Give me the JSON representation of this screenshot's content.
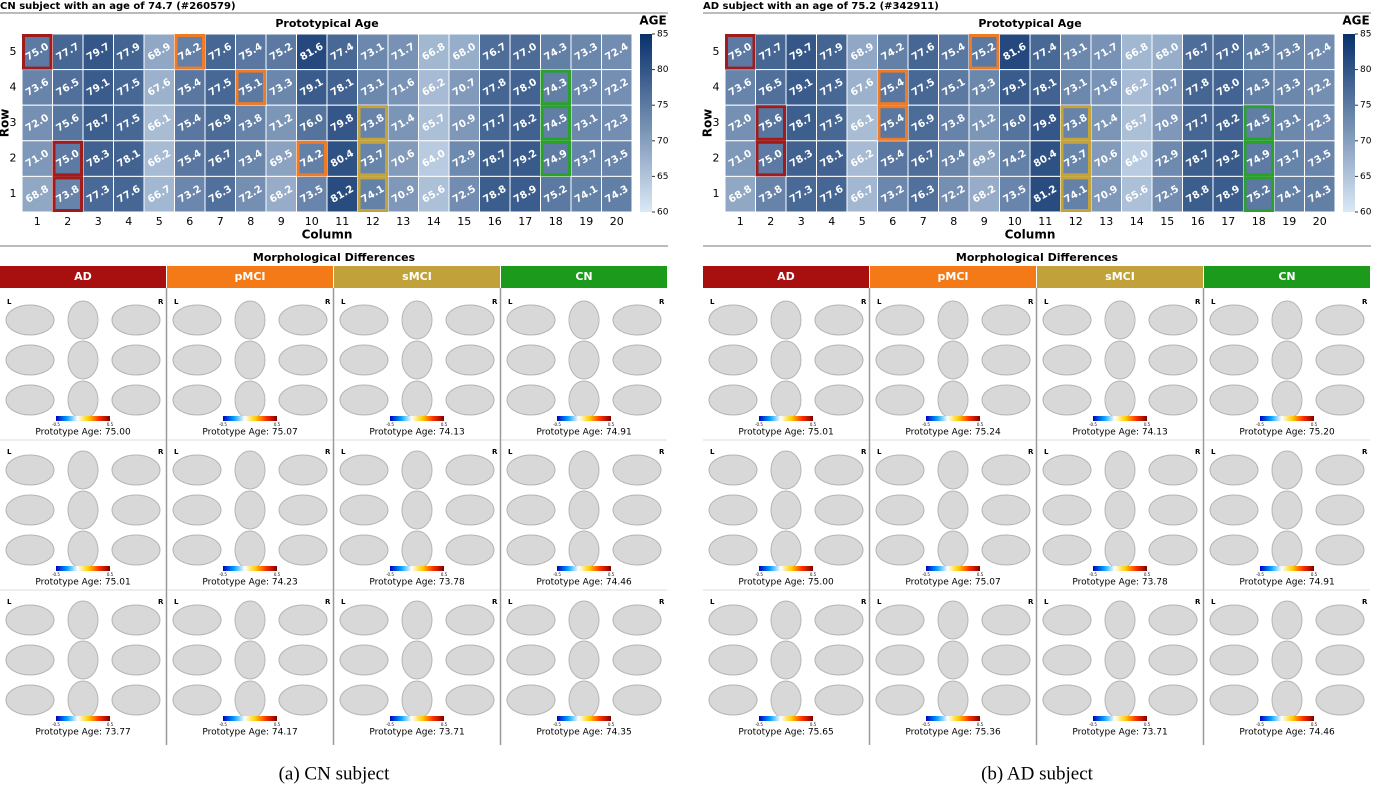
{
  "chart_data": [
    {
      "type": "heatmap",
      "subtitle": "CN subject with an age of 74.7 (#260579)",
      "title": "Prototypical Age",
      "xlabel": "Column",
      "ylabel": "Row",
      "x": [
        1,
        2,
        3,
        4,
        5,
        6,
        7,
        8,
        9,
        10,
        11,
        12,
        13,
        14,
        15,
        16,
        17,
        18,
        19,
        20
      ],
      "y": [
        5,
        4,
        3,
        2,
        1
      ],
      "values": [
        [
          75.0,
          77.7,
          79.7,
          77.9,
          68.9,
          74.2,
          77.6,
          75.4,
          75.2,
          81.6,
          77.4,
          73.1,
          71.7,
          66.8,
          68.0,
          76.7,
          77.0,
          74.3,
          73.3,
          72.4
        ],
        [
          73.6,
          76.5,
          79.1,
          77.5,
          67.6,
          75.4,
          77.5,
          75.1,
          73.3,
          79.1,
          78.1,
          73.1,
          71.6,
          66.2,
          70.7,
          77.8,
          78.0,
          74.3,
          73.3,
          72.2
        ],
        [
          72.0,
          75.6,
          78.7,
          77.5,
          66.1,
          75.4,
          76.9,
          73.8,
          71.2,
          76.0,
          79.8,
          73.8,
          71.4,
          65.7,
          70.9,
          77.7,
          78.2,
          74.5,
          73.1,
          72.3
        ],
        [
          71.0,
          75.0,
          78.3,
          78.1,
          66.2,
          75.4,
          76.7,
          73.4,
          69.5,
          74.2,
          80.4,
          73.7,
          70.6,
          64.0,
          72.9,
          78.7,
          79.2,
          74.9,
          73.7,
          73.5
        ],
        [
          68.8,
          73.8,
          77.3,
          77.6,
          66.7,
          73.2,
          76.3,
          72.2,
          68.2,
          73.5,
          81.2,
          74.1,
          70.9,
          65.6,
          72.5,
          78.8,
          78.9,
          75.2,
          74.1,
          74.3
        ]
      ],
      "value_labels": [
        [
          "75.0",
          "77.7",
          "79.7",
          "77.9",
          "68.9",
          "74.2",
          "77.6",
          "75.4",
          "75.2",
          "81.6",
          "77.4",
          "73.1",
          "71.7",
          "66.8",
          "68.0",
          "76.7",
          "77.0",
          "74.3",
          "73.3",
          "72.4"
        ],
        [
          "73.6",
          "76.5",
          "79.1",
          "77.5",
          "67.6",
          "75.4",
          "77.5",
          "75.1",
          "73.3",
          "79.1",
          "78.1",
          "73.1",
          "71.6",
          "66.2",
          "70.7",
          "77.8",
          "78.0",
          "74.3",
          "73.3",
          "72.2"
        ],
        [
          "72.0",
          "75.6",
          "78.7",
          "77.5",
          "66.1",
          "75.4",
          "76.9",
          "73.8",
          "71.2",
          "76.0",
          "79.8",
          "73.8",
          "71.4",
          "65.7",
          "70.9",
          "77.7",
          "78.2",
          "74.5",
          "73.1",
          "72.3"
        ],
        [
          "71.0",
          "75.0",
          "78.3",
          "78.1",
          "66.2",
          "75.4",
          "76.7",
          "73.4",
          "69.5",
          "74.2",
          "80.4",
          "73.7",
          "70.6",
          "64.0",
          "72.9",
          "78.7",
          "79.2",
          "74.9",
          "73.7",
          "73.5"
        ],
        [
          "68.8",
          "73.8",
          "77.3",
          "77.6",
          "66.7",
          "73.2",
          "76.3",
          "72.2",
          "68.2",
          "73.5",
          "81.2",
          "74.1",
          "70.9",
          "65.6",
          "72.5",
          "78.8",
          "78.9",
          "75.2",
          "74.1",
          "74.3"
        ]
      ],
      "colorbar_label": "AGE",
      "zlim": [
        60,
        85
      ],
      "zticks": [
        60,
        65,
        70,
        75,
        80,
        85
      ],
      "colormap": [
        "#dbe9f6",
        "#08306b"
      ],
      "highlights": [
        {
          "color": "#a01c1c",
          "cells": [
            [
              5,
              1
            ],
            [
              2,
              2
            ],
            [
              1,
              2
            ]
          ]
        },
        {
          "color": "#f07b26",
          "cells": [
            [
              5,
              6
            ],
            [
              4,
              8
            ],
            [
              2,
              10
            ]
          ]
        },
        {
          "color": "#c4a43a",
          "cells": [
            [
              3,
              12
            ],
            [
              2,
              12
            ],
            [
              1,
              12
            ]
          ]
        },
        {
          "color": "#2ca02c",
          "cells": [
            [
              4,
              18
            ],
            [
              3,
              18
            ],
            [
              2,
              18
            ]
          ]
        }
      ]
    },
    {
      "type": "heatmap",
      "subtitle": "AD subject with an age of 75.2 (#342911)",
      "title": "Prototypical Age",
      "xlabel": "Column",
      "ylabel": "Row",
      "x": [
        1,
        2,
        3,
        4,
        5,
        6,
        7,
        8,
        9,
        10,
        11,
        12,
        13,
        14,
        15,
        16,
        17,
        18,
        19,
        20
      ],
      "y": [
        5,
        4,
        3,
        2,
        1
      ],
      "values": [
        [
          75.0,
          77.7,
          79.7,
          77.9,
          68.9,
          74.2,
          77.6,
          75.4,
          75.2,
          81.6,
          77.4,
          73.1,
          71.7,
          66.8,
          68.0,
          76.7,
          77.0,
          74.3,
          73.3,
          72.4
        ],
        [
          73.6,
          76.5,
          79.1,
          77.5,
          67.6,
          75.4,
          77.5,
          75.1,
          73.3,
          79.1,
          78.1,
          73.1,
          71.6,
          66.2,
          70.7,
          77.8,
          78.0,
          74.3,
          73.3,
          72.2
        ],
        [
          72.0,
          75.6,
          78.7,
          77.5,
          66.1,
          75.4,
          76.9,
          73.8,
          71.2,
          76.0,
          79.8,
          73.8,
          71.4,
          65.7,
          70.9,
          77.7,
          78.2,
          74.5,
          73.1,
          72.3
        ],
        [
          71.0,
          75.0,
          78.3,
          78.1,
          66.2,
          75.4,
          76.7,
          73.4,
          69.5,
          74.2,
          80.4,
          73.7,
          70.6,
          64.0,
          72.9,
          78.7,
          79.2,
          74.9,
          73.7,
          73.5
        ],
        [
          68.8,
          73.8,
          77.3,
          77.6,
          66.7,
          73.2,
          76.3,
          72.2,
          68.2,
          73.5,
          81.2,
          74.1,
          70.9,
          65.6,
          72.5,
          78.8,
          78.9,
          75.2,
          74.1,
          74.3
        ]
      ],
      "value_labels": [
        [
          "75.0",
          "77.7",
          "79.7",
          "77.9",
          "68.9",
          "74.2",
          "77.6",
          "75.4",
          "75.2",
          "81.6",
          "77.4",
          "73.1",
          "71.7",
          "66.8",
          "68.0",
          "76.7",
          "77.0",
          "74.3",
          "73.3",
          "72.4"
        ],
        [
          "73.6",
          "76.5",
          "79.1",
          "77.5",
          "67.6",
          "75.4",
          "77.5",
          "75.1",
          "73.3",
          "79.1",
          "78.1",
          "73.1",
          "71.6",
          "66.2",
          "70.7",
          "77.8",
          "78.0",
          "74.3",
          "73.3",
          "72.2"
        ],
        [
          "72.0",
          "75.6",
          "78.7",
          "77.5",
          "66.1",
          "75.4",
          "76.9",
          "73.8",
          "71.2",
          "76.0",
          "79.8",
          "73.8",
          "71.4",
          "65.7",
          "70.9",
          "77.7",
          "78.2",
          "74.5",
          "73.1",
          "72.3"
        ],
        [
          "71.0",
          "75.0",
          "78.3",
          "78.1",
          "66.2",
          "75.4",
          "76.7",
          "73.4",
          "69.5",
          "74.2",
          "80.4",
          "73.7",
          "70.6",
          "64.0",
          "72.9",
          "78.7",
          "79.2",
          "74.9",
          "73.7",
          "73.5"
        ],
        [
          "68.8",
          "73.8",
          "77.3",
          "77.6",
          "66.7",
          "73.2",
          "76.3",
          "72.2",
          "68.2",
          "73.5",
          "81.2",
          "74.1",
          "70.9",
          "65.6",
          "72.5",
          "78.8",
          "78.9",
          "75.2",
          "74.1",
          "74.3"
        ]
      ],
      "colorbar_label": "AGE",
      "zlim": [
        60,
        85
      ],
      "zticks": [
        60,
        65,
        70,
        75,
        80,
        85
      ],
      "colormap": [
        "#dbe9f6",
        "#08306b"
      ],
      "highlights": [
        {
          "color": "#a01c1c",
          "cells": [
            [
              5,
              1
            ],
            [
              3,
              2
            ],
            [
              2,
              2
            ]
          ]
        },
        {
          "color": "#f07b26",
          "cells": [
            [
              5,
              9
            ],
            [
              4,
              6
            ],
            [
              3,
              6
            ]
          ]
        },
        {
          "color": "#c4a43a",
          "cells": [
            [
              3,
              12
            ],
            [
              2,
              12
            ],
            [
              1,
              12
            ]
          ]
        },
        {
          "color": "#2ca02c",
          "cells": [
            [
              3,
              18
            ],
            [
              2,
              18
            ],
            [
              1,
              18
            ]
          ]
        }
      ]
    }
  ],
  "figure": {
    "hemisphere_labels": [
      "L",
      "R"
    ],
    "scale_labels": [
      "-0.5",
      "0.5"
    ],
    "panels": [
      {
        "morph_title": "Morphological Differences",
        "caption": "(a) CN subject",
        "groups": [
          {
            "name": "AD",
            "color": "#a80f0f",
            "ages": [
              "Prototype Age: 75.00",
              "Prototype Age: 75.01",
              "Prototype Age: 73.77"
            ]
          },
          {
            "name": "pMCI",
            "color": "#f47a17",
            "ages": [
              "Prototype Age: 75.07",
              "Prototype Age: 74.23",
              "Prototype Age: 74.17"
            ]
          },
          {
            "name": "sMCI",
            "color": "#c1a23a",
            "ages": [
              "Prototype Age: 74.13",
              "Prototype Age: 73.78",
              "Prototype Age: 73.71"
            ]
          },
          {
            "name": "CN",
            "color": "#1c9a1c",
            "ages": [
              "Prototype Age: 74.91",
              "Prototype Age: 74.46",
              "Prototype Age: 74.35"
            ]
          }
        ]
      },
      {
        "morph_title": "Morphological Differences",
        "caption": "(b) AD subject",
        "groups": [
          {
            "name": "AD",
            "color": "#a80f0f",
            "ages": [
              "Prototype Age: 75.01",
              "Prototype Age: 75.00",
              "Prototype Age: 75.65"
            ]
          },
          {
            "name": "pMCI",
            "color": "#f47a17",
            "ages": [
              "Prototype Age: 75.24",
              "Prototype Age: 75.07",
              "Prototype Age: 75.36"
            ]
          },
          {
            "name": "sMCI",
            "color": "#c1a23a",
            "ages": [
              "Prototype Age: 74.13",
              "Prototype Age: 73.78",
              "Prototype Age: 73.71"
            ]
          },
          {
            "name": "CN",
            "color": "#1c9a1c",
            "ages": [
              "Prototype Age: 75.20",
              "Prototype Age: 74.91",
              "Prototype Age: 74.46"
            ]
          }
        ]
      }
    ]
  }
}
